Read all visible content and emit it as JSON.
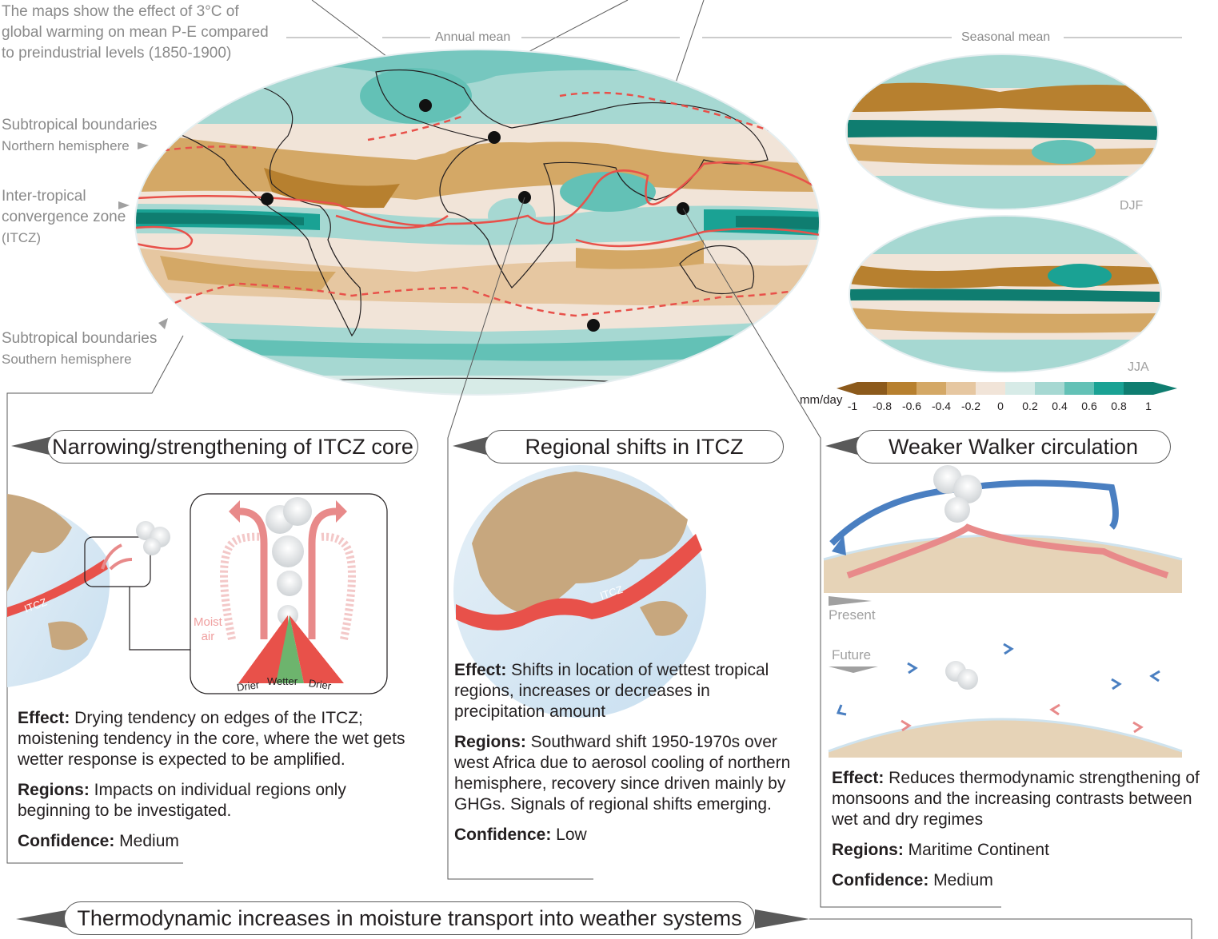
{
  "intro": {
    "line1": "The maps show the effect of 3°C of",
    "line2": "global warming on mean P-E compared",
    "line3": "to preindustrial levels (1850-1900)"
  },
  "labels": {
    "subtropical_north_1": "Subtropical boundaries",
    "subtropical_north_2": "Northern hemisphere",
    "itcz_1": "Inter-tropical",
    "itcz_2": "convergence zone",
    "itcz_3": "(ITCZ)",
    "subtropical_south_1": "Subtropical boundaries",
    "subtropical_south_2": "Southern hemisphere"
  },
  "maps": {
    "annual_title": "Annual mean",
    "seasonal_title": "Seasonal mean",
    "djf": "DJF",
    "jja": "JJA"
  },
  "colorbar": {
    "unit": "mm/day",
    "ticks": [
      "-1",
      "-0.8",
      "-0.6",
      "-0.4",
      "-0.2",
      "0",
      "0.2",
      "0.4",
      "0.6",
      "0.8",
      "1"
    ],
    "colors": [
      "#8c5a1c",
      "#b7802f",
      "#d4a866",
      "#e6c7a1",
      "#f1e4d8",
      "#d7ebe7",
      "#a6d8d2",
      "#63c1b6",
      "#1aa294",
      "#0f7d70"
    ]
  },
  "panels": {
    "itcz_core": {
      "title": "Narrowing/strengthening of ITCZ core",
      "itcz_tag": "ITCZ",
      "moist_air_1": "Moist",
      "moist_air_2": "air",
      "drier_left": "Drier",
      "wetter": "Wetter",
      "drier_right": "Drier",
      "effect_label": "Effect:",
      "effect_text": " Drying tendency on edges of the ITCZ; moistening tendency in the core, where the wet gets wetter response is expected to be amplified.",
      "regions_label": "Regions:",
      "regions_text": " Impacts on individual regions only beginning to be investigated.",
      "confidence_label": "Confidence:",
      "confidence_text": " Medium"
    },
    "itcz_shifts": {
      "title": "Regional shifts in ITCZ",
      "itcz_tag": "ITCZ",
      "effect_label": "Effect:",
      "effect_text": " Shifts in location of wettest tropical regions, increases or decreases in precipitation amount",
      "regions_label": "Regions:",
      "regions_text": " Southward shift 1950-1970s over west Africa due to aerosol cooling of northern hemisphere, recovery since driven mainly by GHGs. Signals of regional shifts emerging.",
      "confidence_label": "Confidence:",
      "confidence_text": " Low"
    },
    "walker": {
      "title": "Weaker Walker circulation",
      "present": "Present",
      "future": "Future",
      "effect_label": "Effect:",
      "effect_text": " Reduces thermodynamic strengthening of monsoons and the increasing contrasts between wet and dry regimes",
      "regions_label": "Regions:",
      "regions_text": " Maritime Continent",
      "confidence_label": "Confidence:",
      "confidence_text": " Medium"
    }
  },
  "bottom_title": "Thermodynamic increases in moisture transport into weather systems"
}
